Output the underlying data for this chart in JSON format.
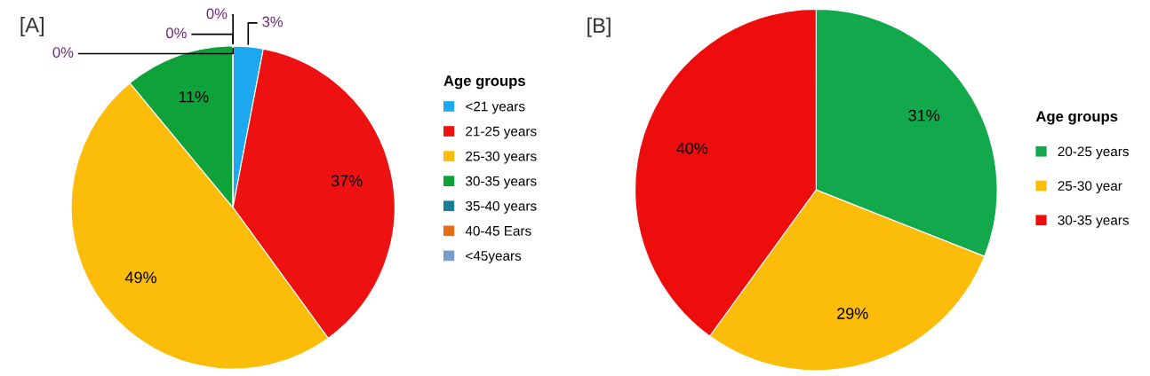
{
  "chart_data": [
    {
      "type": "pie",
      "title": "[A]",
      "legend_title": "Age groups",
      "legend": "right",
      "categories": [
        "<21 years",
        "21-25 years",
        "25-30 years",
        "30-35 years",
        "35-40 years",
        "40-45 Ears",
        "<45years"
      ],
      "values": [
        3,
        37,
        49,
        11,
        0,
        0,
        0
      ],
      "value_labels": [
        "3%",
        "37%",
        "49%",
        "11%",
        "0%",
        "0%",
        "0%"
      ],
      "colors": [
        "#1ea8f0",
        "#ee1111",
        "#fbbd0a",
        "#0fa23a",
        "#1a7f93",
        "#e66c16",
        "#7a9bd0"
      ]
    },
    {
      "type": "pie",
      "title": "[B]",
      "legend_title": "Age groups",
      "legend": "right",
      "categories": [
        "20-25 years",
        "25-30 year",
        "30-35 years"
      ],
      "values": [
        31,
        29,
        40
      ],
      "value_labels": [
        "31%",
        "29%",
        "40%"
      ],
      "colors": [
        "#11a94b",
        "#fbbd0a",
        "#ee0d0d"
      ]
    }
  ]
}
